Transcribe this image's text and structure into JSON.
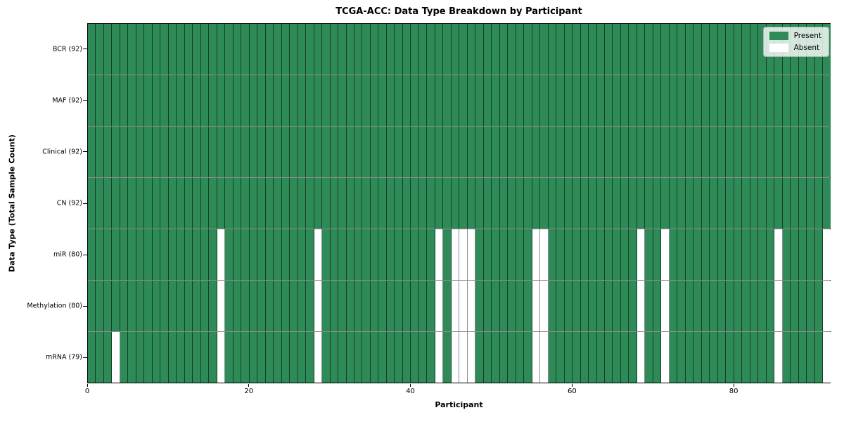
{
  "chart_data": {
    "type": "heatmap",
    "title": "TCGA-ACC: Data Type Breakdown by Participant",
    "xlabel": "Participant",
    "ylabel": "Data Type (Total Sample Count)",
    "x_range": [
      0,
      92
    ],
    "x_ticks": [
      0,
      20,
      40,
      60,
      80
    ],
    "n_participants": 92,
    "grid": "cell-borders",
    "legend_position": "upper-right",
    "colors": {
      "present": "#2e8b57",
      "absent": "#ffffff"
    },
    "legend": [
      {
        "label": "Present",
        "color": "#2e8b57"
      },
      {
        "label": "Absent",
        "color": "#ffffff"
      }
    ],
    "rows": [
      {
        "label": "BCR (92)",
        "data_type": "BCR",
        "present_count": 92,
        "absent_participants": []
      },
      {
        "label": "MAF (92)",
        "data_type": "MAF",
        "present_count": 92,
        "absent_participants": []
      },
      {
        "label": "Clinical (92)",
        "data_type": "Clinical",
        "present_count": 92,
        "absent_participants": []
      },
      {
        "label": "CN (92)",
        "data_type": "CN",
        "present_count": 92,
        "absent_participants": []
      },
      {
        "label": "miR (80)",
        "data_type": "miR",
        "present_count": 80,
        "absent_participants": [
          16,
          28,
          43,
          45,
          46,
          47,
          55,
          56,
          68,
          71,
          85,
          91
        ]
      },
      {
        "label": "Methylation (80)",
        "data_type": "Methylation",
        "present_count": 80,
        "absent_participants": [
          16,
          28,
          43,
          45,
          46,
          47,
          55,
          56,
          68,
          71,
          85,
          91
        ]
      },
      {
        "label": "mRNA (79)",
        "data_type": "mRNA",
        "present_count": 79,
        "absent_participants": [
          3,
          16,
          28,
          43,
          45,
          46,
          47,
          55,
          56,
          68,
          71,
          85,
          91
        ]
      }
    ]
  }
}
